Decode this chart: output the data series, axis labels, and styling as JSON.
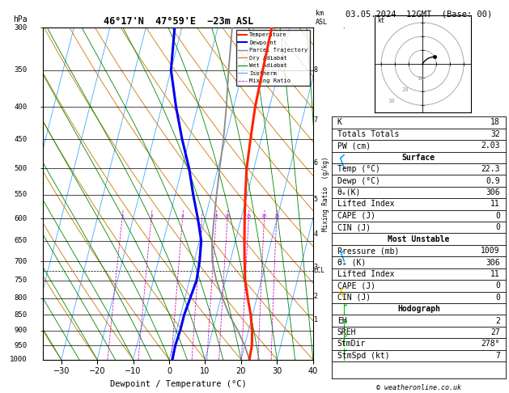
{
  "title_left": "46°17'N  47°59'E  −23m ASL",
  "date_title": "03.05.2024  12GMT  (Base: 00)",
  "xlabel": "Dewpoint / Temperature (°C)",
  "pressure_levels": [
    300,
    350,
    400,
    450,
    500,
    550,
    600,
    650,
    700,
    750,
    800,
    850,
    900,
    950,
    1000
  ],
  "xlim": [
    -35,
    40
  ],
  "xticks": [
    -30,
    -20,
    -10,
    0,
    10,
    20,
    30,
    40
  ],
  "temp_profile_x": [
    5.0,
    5.5,
    6.0,
    7.0,
    8.0,
    9.5,
    11.0,
    12.5,
    14.0,
    15.5,
    17.5,
    19.5,
    21.0,
    22.0,
    22.3
  ],
  "temp_profile_p": [
    300,
    350,
    400,
    450,
    500,
    550,
    600,
    650,
    700,
    750,
    800,
    850,
    900,
    950,
    1000
  ],
  "dewp_profile_x": [
    -22,
    -20,
    -16,
    -12,
    -8,
    -5,
    -2,
    0.5,
    1.5,
    2.0,
    1.5,
    1.0,
    1.0,
    0.7,
    0.9
  ],
  "dewp_profile_p": [
    300,
    350,
    400,
    450,
    500,
    550,
    600,
    650,
    700,
    750,
    800,
    850,
    900,
    950,
    1000
  ],
  "parcel_x": [
    22.3,
    20.0,
    17.0,
    13.5,
    10.5,
    7.5,
    5.0,
    3.5,
    2.5,
    1.5,
    0.5,
    -0.5,
    -2.0,
    -4.0,
    -6.0
  ],
  "parcel_p": [
    1000,
    950,
    900,
    850,
    800,
    750,
    700,
    650,
    600,
    550,
    500,
    450,
    400,
    350,
    300
  ],
  "dry_adiabat_color": "#cc7700",
  "wet_adiabat_color": "#008800",
  "isotherm_color": "#44aaff",
  "mixing_ratio_color": "#cc00cc",
  "temp_color": "#ff2200",
  "dewp_color": "#0000ee",
  "parcel_color": "#888888",
  "background_color": "#ffffff",
  "lcl_pressure": 725,
  "km_ticks": [
    1,
    2,
    3,
    4,
    5,
    6,
    7,
    8
  ],
  "km_pressures": [
    865,
    795,
    715,
    635,
    560,
    490,
    420,
    350
  ],
  "stats_K": 18,
  "stats_TT": 32,
  "stats_PW": "2.03",
  "surf_temp": "22.3",
  "surf_dewp": "0.9",
  "surf_theta": "306",
  "surf_LI": "11",
  "surf_CAPE": "0",
  "surf_CIN": "0",
  "mu_pressure": "1009",
  "mu_theta": "306",
  "mu_LI": "11",
  "mu_CAPE": "0",
  "mu_CIN": "0",
  "hodo_EH": "2",
  "hodo_SREH": "27",
  "hodo_StmDir": "278°",
  "hodo_StmSpd": "7",
  "copyright": "© weatheronline.co.uk",
  "skew_factor": 45.0,
  "mixing_ratio_lines": [
    1,
    2,
    4,
    6,
    8,
    10,
    15,
    20,
    25
  ],
  "mixing_ratio_label_vals": [
    1,
    2,
    4,
    8,
    10,
    15,
    20,
    25
  ]
}
